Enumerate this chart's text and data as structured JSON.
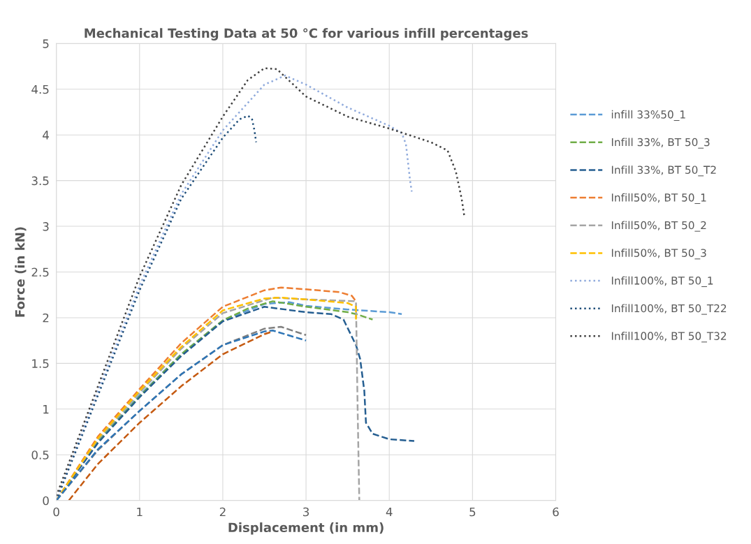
{
  "chart_data": {
    "type": "line",
    "title": "Mechanical Testing Data at 50 °C for various infill percentages",
    "xlabel": "Displacement (in mm)",
    "ylabel": "Force (in kN)",
    "xlim": [
      0,
      6
    ],
    "xticks": [
      0,
      1,
      2,
      3,
      4,
      5,
      6
    ],
    "ylim": [
      0,
      5
    ],
    "yticks": [
      0,
      0.5,
      1,
      1.5,
      2,
      2.5,
      3,
      3.5,
      4,
      4.5,
      5
    ],
    "grid": true,
    "legend": "right",
    "marker": "none",
    "series": [
      {
        "name": "infill 33%50_1",
        "color": "#5b9bd5",
        "line_style": "dashed",
        "x": [
          0,
          0.5,
          1,
          1.5,
          2,
          2.5,
          2.8,
          3,
          3.5,
          4,
          4.15
        ],
        "values": [
          0,
          0.65,
          1.15,
          1.6,
          1.97,
          2.15,
          2.17,
          2.13,
          2.09,
          2.06,
          2.04
        ]
      },
      {
        "name": "Infill 33%, BT 50_3",
        "color": "#70ad47",
        "line_style": "dashed",
        "x": [
          0,
          0.5,
          1,
          1.5,
          2,
          2.3,
          2.6,
          3,
          3.5,
          3.6,
          3.8
        ],
        "values": [
          0,
          0.64,
          1.14,
          1.6,
          1.97,
          2.1,
          2.18,
          2.12,
          2.06,
          2.04,
          1.98
        ]
      },
      {
        "name": "Infill 33%, BT 50_T2",
        "color": "#255e91",
        "line_style": "dashed",
        "x": [
          0,
          0.5,
          1,
          1.5,
          2,
          2.5,
          3,
          3.3,
          3.45,
          3.6,
          3.65,
          3.7,
          3.72,
          3.8,
          4,
          4.3
        ],
        "values": [
          0,
          0.63,
          1.13,
          1.58,
          1.96,
          2.12,
          2.06,
          2.04,
          1.98,
          1.7,
          1.55,
          1.2,
          0.85,
          0.73,
          0.67,
          0.65
        ]
      },
      {
        "name": "Infill50%, BT 50_1",
        "color": "#ed7d31",
        "line_style": "dashed",
        "x": [
          0,
          0.5,
          1,
          1.5,
          2,
          2.5,
          2.7,
          3,
          3.4,
          3.55,
          3.6
        ],
        "values": [
          0,
          0.7,
          1.22,
          1.72,
          2.12,
          2.3,
          2.33,
          2.31,
          2.28,
          2.24,
          2.18
        ]
      },
      {
        "name": "Infill50%, BT 50_2",
        "color": "#a5a5a5",
        "line_style": "dashed",
        "x": [
          0,
          0.5,
          1,
          1.5,
          2,
          2.6,
          3,
          3.6,
          3.62,
          3.64
        ],
        "values": [
          0,
          0.67,
          1.18,
          1.66,
          2.05,
          2.22,
          2.2,
          2.18,
          1.0,
          0
        ]
      },
      {
        "name": "Infill50%, BT 50_3",
        "color": "#ffc000",
        "line_style": "dashed",
        "x": [
          0,
          0.5,
          1,
          1.5,
          2,
          2.5,
          2.7,
          3,
          3.5,
          3.6,
          3.6
        ],
        "values": [
          0,
          0.68,
          1.2,
          1.68,
          2.08,
          2.21,
          2.22,
          2.2,
          2.16,
          2.12,
          1.98
        ]
      },
      {
        "name": "Infill100%, BT 50_1",
        "color": "#8faadc",
        "line_style": "dotted",
        "x": [
          0,
          0.5,
          1,
          1.5,
          2,
          2.5,
          2.75,
          3,
          3.5,
          4,
          4.15,
          4.2,
          4.25,
          4.27
        ],
        "values": [
          0,
          1.2,
          2.35,
          3.35,
          4.05,
          4.55,
          4.65,
          4.55,
          4.3,
          4.1,
          4.02,
          3.9,
          3.5,
          3.38
        ]
      },
      {
        "name": "Infill100%, BT 50_T22",
        "color": "#1f4e79",
        "line_style": "dotted",
        "x": [
          0,
          0.5,
          1,
          1.5,
          2,
          2.2,
          2.3,
          2.35,
          2.38,
          2.4
        ],
        "values": [
          0,
          1.15,
          2.3,
          3.3,
          3.97,
          4.17,
          4.21,
          4.18,
          4.05,
          3.92
        ]
      },
      {
        "name": "Infill100%, BT 50_T32",
        "color": "#404040",
        "line_style": "dotted",
        "x": [
          0,
          0.5,
          1,
          1.5,
          2,
          2.3,
          2.5,
          2.65,
          3,
          3.5,
          4,
          4.5,
          4.7,
          4.8,
          4.87,
          4.9
        ],
        "values": [
          0.05,
          1.25,
          2.45,
          3.45,
          4.2,
          4.6,
          4.73,
          4.72,
          4.42,
          4.2,
          4.07,
          3.92,
          3.83,
          3.6,
          3.3,
          3.12
        ]
      },
      {
        "color": "#7f7f7f",
        "line_style": "dashed",
        "x": [
          0,
          0.5,
          1,
          1.5,
          2,
          2.5,
          2.7,
          3
        ],
        "values": [
          0,
          0.55,
          0.98,
          1.38,
          1.7,
          1.88,
          1.9,
          1.81
        ]
      },
      {
        "color": "#2e75b6",
        "line_style": "dashed",
        "x": [
          0,
          0.5,
          1,
          1.5,
          2,
          2.5,
          2.6,
          3
        ],
        "values": [
          0,
          0.56,
          0.98,
          1.38,
          1.7,
          1.85,
          1.86,
          1.75
        ]
      },
      {
        "color": "#c55a11",
        "line_style": "dashed",
        "x": [
          0.15,
          0.5,
          1,
          1.5,
          2,
          2.5,
          2.6
        ],
        "values": [
          0,
          0.4,
          0.85,
          1.25,
          1.6,
          1.82,
          1.85
        ]
      }
    ]
  }
}
